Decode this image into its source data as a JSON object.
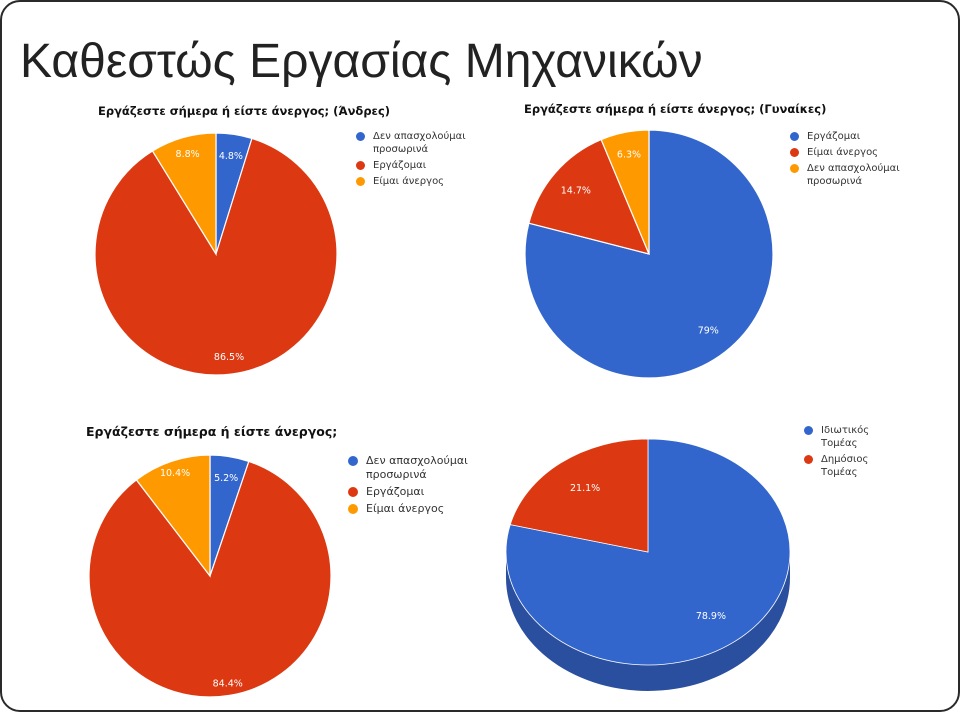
{
  "slide": {
    "title": "Καθεστώς Εργασίας Μηχανικών"
  },
  "chart_data": [
    {
      "id": "men",
      "type": "pie",
      "title": "Εργάζεστε σήμερα ή είστε άνεργος; (Άνδρες)",
      "slices": [
        {
          "label": "Δεν απασχολούμαι προσωρινά",
          "value": 4.8,
          "text": "4.8%",
          "color": "#3366cc"
        },
        {
          "label": "Εργάζομαι",
          "value": 86.5,
          "text": "86.5%",
          "color": "#dc3912"
        },
        {
          "label": "Είμαι άνεργος",
          "value": 8.8,
          "text": "8.8%",
          "color": "#ff9900"
        }
      ],
      "legend_position": "right"
    },
    {
      "id": "women",
      "type": "pie",
      "title": "Εργάζεστε σήμερα ή είστε άνεργος; (Γυναίκες)",
      "slices": [
        {
          "label": "Εργάζομαι",
          "value": 79,
          "text": "79%",
          "color": "#3366cc"
        },
        {
          "label": "Είμαι άνεργος",
          "value": 14.7,
          "text": "14.7%",
          "color": "#dc3912"
        },
        {
          "label": "Δεν απασχολούμαι προσωρινά",
          "value": 6.3,
          "text": "6.3%",
          "color": "#ff9900"
        }
      ],
      "legend_position": "right"
    },
    {
      "id": "total",
      "type": "pie",
      "title": "Εργάζεστε σήμερα ή είστε άνεργος;",
      "slices": [
        {
          "label": "Δεν απασχολούμαι προσωρινά",
          "value": 5.2,
          "text": "5.2%",
          "color": "#3366cc"
        },
        {
          "label": "Εργάζομαι",
          "value": 84.4,
          "text": "84.4%",
          "color": "#dc3912"
        },
        {
          "label": "Είμαι άνεργος",
          "value": 10.4,
          "text": "10.4%",
          "color": "#ff9900"
        }
      ],
      "legend_position": "right"
    },
    {
      "id": "sector",
      "type": "pie",
      "title": "",
      "style": "3d",
      "slices": [
        {
          "label": "Ιδιωτικός Τομέας",
          "value": 78.9,
          "text": "78.9%",
          "color": "#3366cc",
          "side_color": "#2a4f9e"
        },
        {
          "label": "Δημόσιος Τομέας",
          "value": 21.1,
          "text": "21.1%",
          "color": "#dc3912",
          "side_color": "#a82a0c"
        }
      ],
      "legend_position": "top-right"
    }
  ]
}
